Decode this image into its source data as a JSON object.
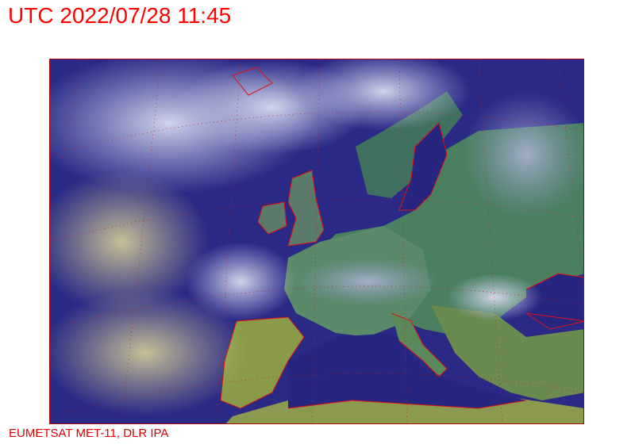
{
  "header": {
    "title": "UTC 2022/07/28 11:45"
  },
  "footer": {
    "credit": "EUMETSAT MET-11, DLR IPA"
  },
  "map": {
    "type": "satellite-composite",
    "region": "Europe / North Atlantic",
    "colors": {
      "sea": "#23237a",
      "cloud": "#c8cce8",
      "cloud_yellow": "#d8d4a0",
      "land": "#3f7a5a",
      "land_dry": "#8a9a50",
      "coastline": "#e01010",
      "grid": "#c02020"
    }
  }
}
